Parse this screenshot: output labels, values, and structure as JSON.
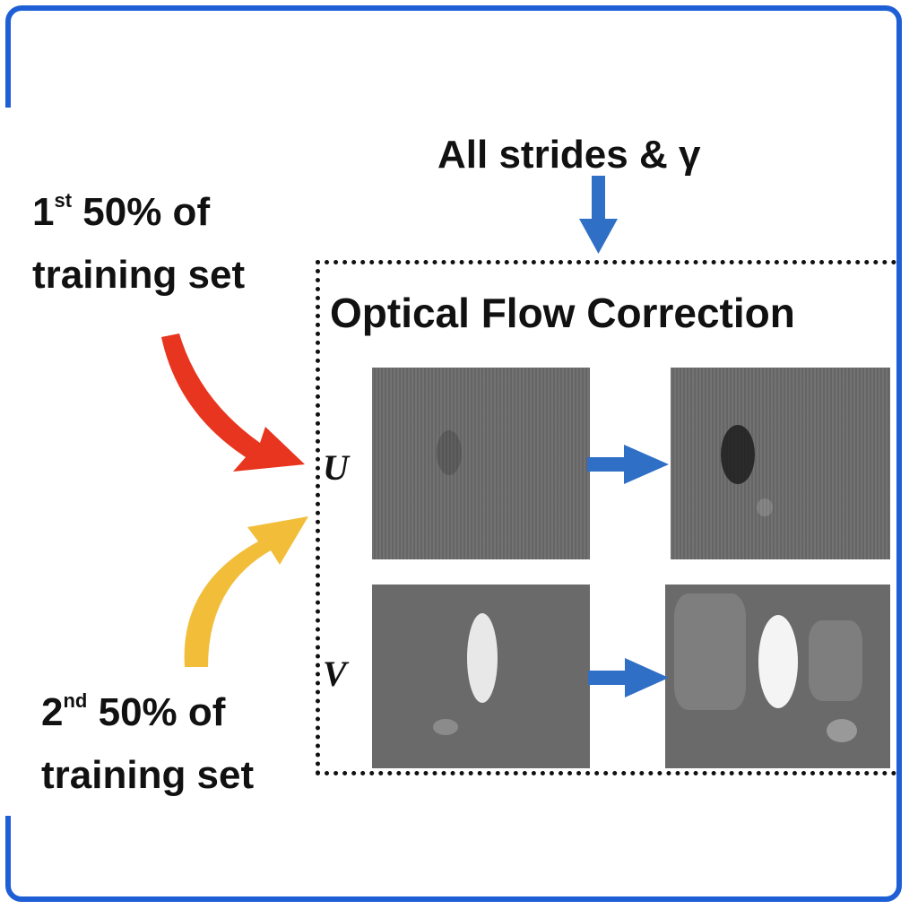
{
  "top_input_label": "All strides & γ",
  "first_half": {
    "ordinal": "1",
    "suffix": "st",
    "line1_rest": " 50% of",
    "line2": "training set"
  },
  "second_half": {
    "ordinal": "2",
    "suffix": "nd",
    "line1_rest": " 50% of",
    "line2": "training set"
  },
  "box_title": "Optical Flow Correction",
  "row_u_label": "U",
  "row_v_label": "V",
  "colors": {
    "frame": "#1f5fd6",
    "blue_arrow": "#2f6fc6",
    "red_arrow": "#e8351f",
    "yellow_arrow": "#f2be3a",
    "panel_gray": "#6b6b6b"
  },
  "icons": [
    "down-arrow-icon",
    "red-curved-arrow-icon",
    "yellow-curved-arrow-icon",
    "right-arrow-icon"
  ]
}
